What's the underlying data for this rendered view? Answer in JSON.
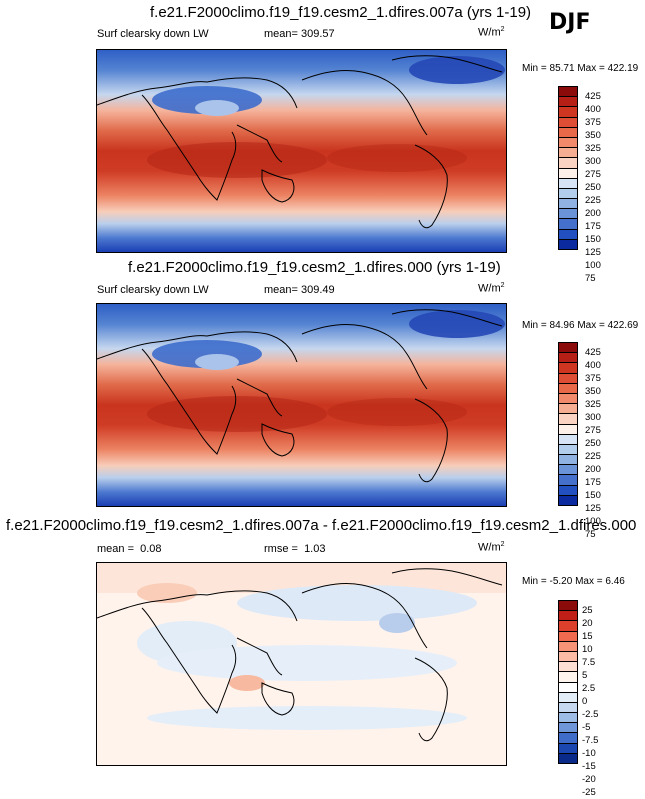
{
  "season": "DJF",
  "units": "W/m",
  "units_sup": "2",
  "panels": [
    {
      "title": "f.e21.F2000climo.f19_f19.cesm2_1.dfires.007a (yrs 1-19)",
      "variable": "Surf clearsky down LW",
      "mean_label": "mean=",
      "mean_value": "309.57",
      "minmax": "Min = 85.71 Max = 422.19",
      "colorbar_labels": [
        "425",
        "400",
        "375",
        "350",
        "325",
        "300",
        "275",
        "250",
        "225",
        "200",
        "175",
        "150",
        "125",
        "100",
        "75"
      ]
    },
    {
      "title": "f.e21.F2000climo.f19_f19.cesm2_1.dfires.000 (yrs 1-19)",
      "variable": "Surf clearsky down LW",
      "mean_label": "mean=",
      "mean_value": "309.49",
      "minmax": "Min = 84.96 Max = 422.69",
      "colorbar_labels": [
        "425",
        "400",
        "375",
        "350",
        "325",
        "300",
        "275",
        "250",
        "225",
        "200",
        "175",
        "150",
        "125",
        "100",
        "75"
      ]
    },
    {
      "title": "f.e21.F2000climo.f19_f19.cesm2_1.dfires.007a - f.e21.F2000climo.f19_f19.cesm2_1.dfires.000",
      "mean_label": "mean =",
      "mean_value": "0.08",
      "rmse_label": "rmse =",
      "rmse_value": "1.03",
      "minmax": "Min = -5.20 Max = 6.46",
      "colorbar_labels": [
        "25",
        "20",
        "15",
        "10",
        "7.5",
        "5",
        "2.5",
        "0",
        "-2.5",
        "-5",
        "-7.5",
        "-10",
        "-15",
        "-20",
        "-25"
      ]
    }
  ],
  "colors": {
    "abs_scale": [
      "#8b0a0a",
      "#b51f15",
      "#cf3622",
      "#dd4e34",
      "#e8694a",
      "#f08a6a",
      "#f6ae93",
      "#fad3c2",
      "#fdf0e8",
      "#d6e4f5",
      "#b3cdec",
      "#8fb2e3",
      "#6a93d8",
      "#4571cc",
      "#2350c0",
      "#0c2aa0"
    ],
    "diff_scale": [
      "#8b0a0a",
      "#c01f18",
      "#dc3f2c",
      "#ef6a4e",
      "#f79478",
      "#fbbba5",
      "#fde0d3",
      "#fff5ef",
      "#ffffff",
      "#e3edf8",
      "#c5d8f0",
      "#9dbce6",
      "#6f96d8",
      "#3f6cc8",
      "#1b47b0",
      "#0a2a8a"
    ]
  }
}
